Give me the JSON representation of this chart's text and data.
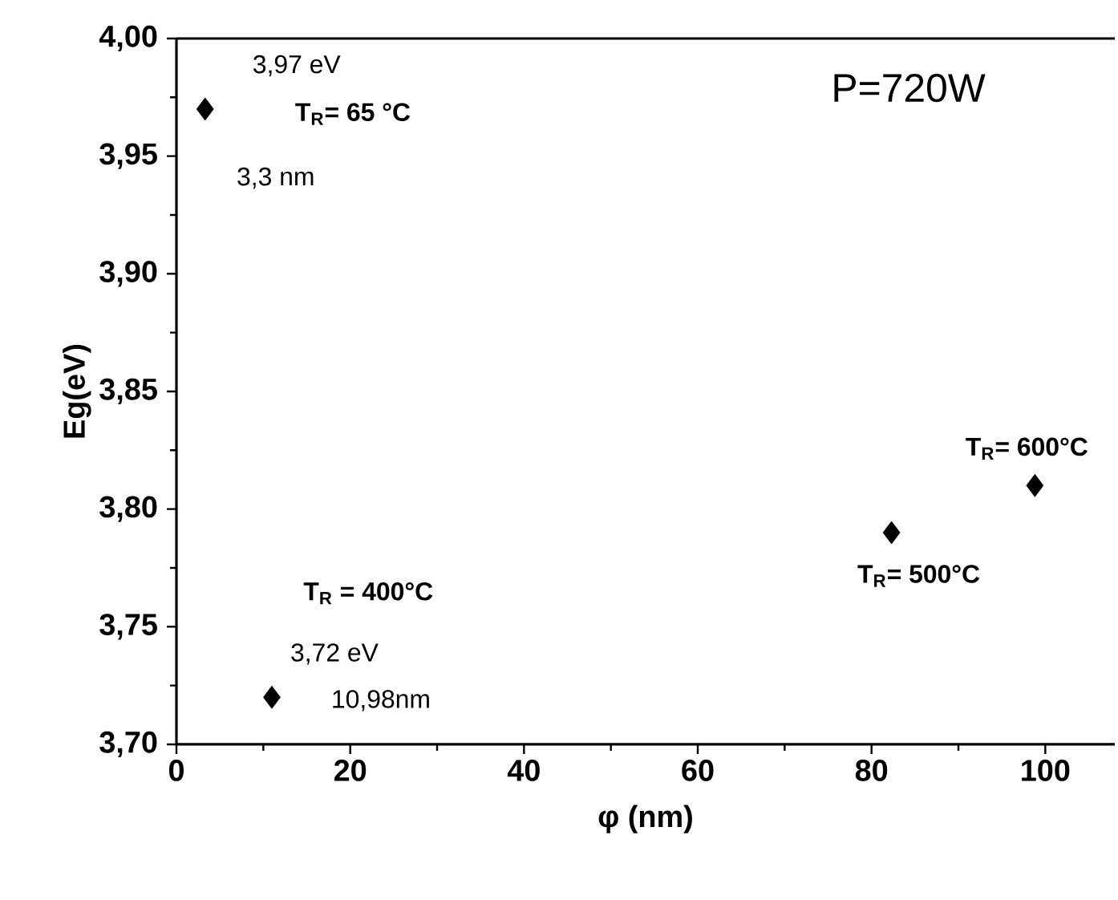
{
  "chart_data": {
    "type": "scatter",
    "xlabel": "φ (nm)",
    "ylabel": "Eg(eV)",
    "x": [
      3.3,
      10.98,
      82.3,
      98.8
    ],
    "values": [
      3.97,
      3.72,
      3.79,
      3.81
    ],
    "color": "#000000",
    "marker": "diamond",
    "xlim": [
      0,
      108
    ],
    "xticks": [
      0,
      20,
      40,
      60,
      80,
      100
    ],
    "ylim": [
      3.7,
      4.0
    ],
    "yticks": [
      {
        "value": 3.7,
        "label": "3,70"
      },
      {
        "value": 3.75,
        "label": "3,75"
      },
      {
        "value": 3.8,
        "label": "3,80"
      },
      {
        "value": 3.85,
        "label": "3,85"
      },
      {
        "value": 3.9,
        "label": "3,90"
      },
      {
        "value": 3.95,
        "label": "3,95"
      },
      {
        "value": 4.0,
        "label": "4,00"
      }
    ],
    "grid": false,
    "annotations": [
      {
        "text": "3,97 eV",
        "x": 3.3,
        "y": 3.97
      },
      "T$_{R}$= 65 °C",
      {
        "text": "3,3 nm",
        "x": 3.3,
        "y": 3.97
      },
      "T$_{R}$ = 400°C",
      {
        "text": "3,72 eV",
        "x": 10.98,
        "y": 3.72
      },
      {
        "text": "10,98nm",
        "x": 10.98,
        "y": 3.72
      },
      {
        "text": "T$_{R}$= 500°C",
        "x": 82.3,
        "y": 3.79
      },
      {
        "text": "T$_{R}$= 600°C",
        "x": 98.8,
        "y": 3.81
      },
      "P=720W"
    ]
  }
}
